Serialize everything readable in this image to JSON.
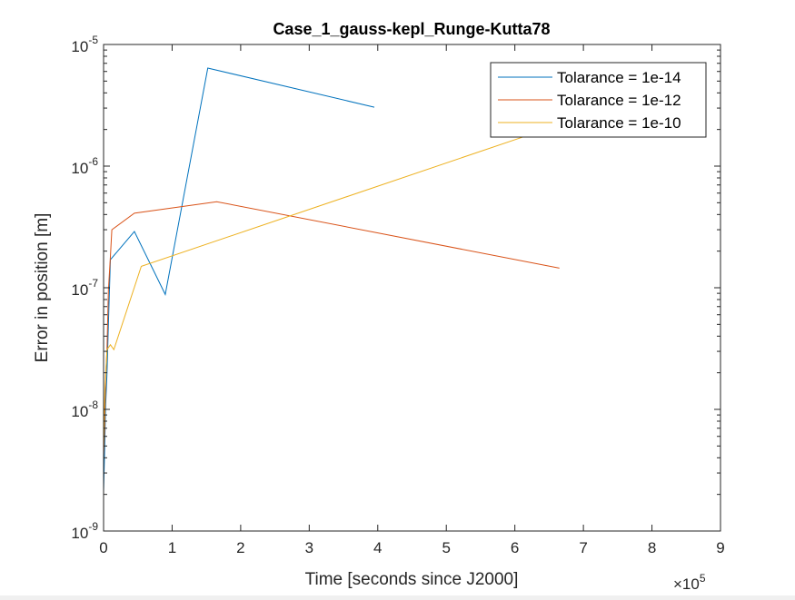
{
  "chart_data": {
    "type": "line",
    "title": "Case_1_gauss-kepl_Runge-Kutta78",
    "xlabel": "Time [seconds since J2000]",
    "ylabel": "Error in position [m]",
    "x_exponent_label": "×10",
    "x_exponent_power": "5",
    "x_multiplier": 100000,
    "xlim": [
      0,
      9
    ],
    "y_scale": "log",
    "ylim": [
      1e-09,
      1e-05
    ],
    "x_ticks": [
      0,
      1,
      2,
      3,
      4,
      5,
      6,
      7,
      8,
      9
    ],
    "x_tick_labels": [
      "0",
      "1",
      "2",
      "3",
      "4",
      "5",
      "6",
      "7",
      "8",
      "9"
    ],
    "y_ticks": [
      -9,
      -8,
      -7,
      -6,
      -5
    ],
    "y_tick_labels": [
      {
        "base": "10",
        "exp": "-9"
      },
      {
        "base": "10",
        "exp": "-8"
      },
      {
        "base": "10",
        "exp": "-7"
      },
      {
        "base": "10",
        "exp": "-6"
      },
      {
        "base": "10",
        "exp": "-5"
      }
    ],
    "grid": false,
    "legend_position": "top-right",
    "series": [
      {
        "name": "Tolarance = 1e-14",
        "color": "#0072BD",
        "x": [
          0.0,
          0.015,
          0.03,
          0.05,
          0.07,
          0.1,
          0.45,
          0.9,
          1.52,
          3.95
        ],
        "y": [
          2.1e-09,
          4.5e-09,
          1.1e-08,
          2e-08,
          5e-08,
          1.7e-07,
          2.9e-07,
          8.8e-08,
          6.4e-06,
          3.05e-06
        ]
      },
      {
        "name": "Tolarance = 1e-12",
        "color": "#D95319",
        "x": [
          0.0,
          0.015,
          0.03,
          0.05,
          0.07,
          0.1,
          0.12,
          0.45,
          1.65,
          6.65
        ],
        "y": [
          4e-09,
          7e-09,
          1.8e-08,
          3.2e-08,
          9.5e-08,
          1.8e-07,
          3e-07,
          4.1e-07,
          5.1e-07,
          1.45e-07
        ]
      },
      {
        "name": "Tolarance = 1e-10",
        "color": "#EDB120",
        "x": [
          0.0,
          0.02,
          0.05,
          0.1,
          0.15,
          0.55,
          6.2
        ],
        "y": [
          4.5e-09,
          1.5e-08,
          3.1e-08,
          3.4e-08,
          3.1e-08,
          1.5e-07,
          1.8e-06
        ]
      }
    ]
  }
}
